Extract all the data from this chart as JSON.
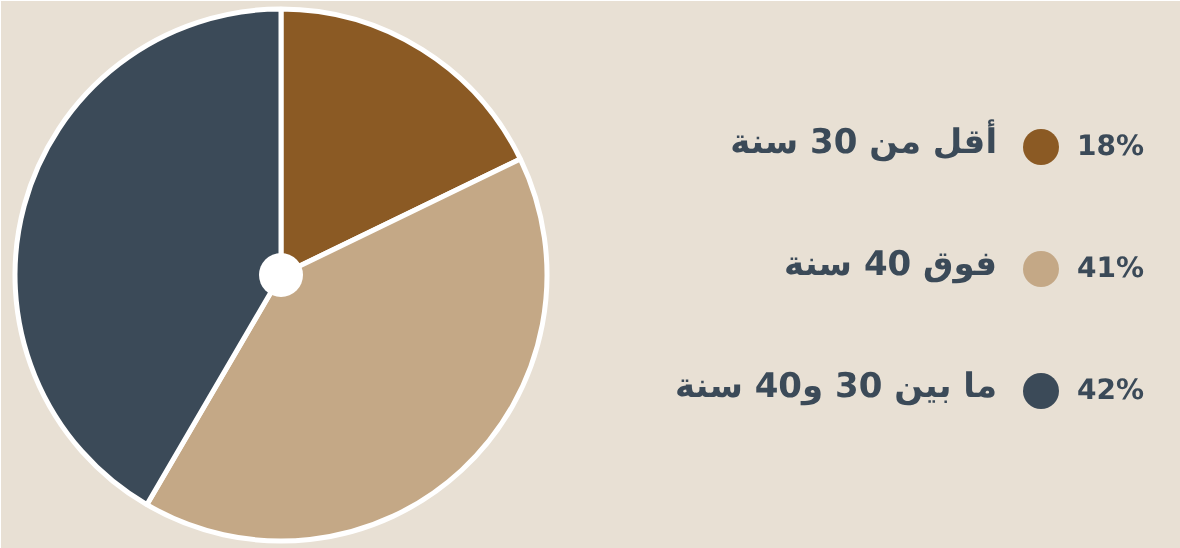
{
  "chart_data": {
    "type": "pie",
    "categories": [
      "أقل من 30 سنة",
      "فوق 40 سنة",
      "ما بين 30 و40 سنة"
    ],
    "values": [
      18,
      41,
      42
    ],
    "colors": [
      "#8b5a24",
      "#c4a886",
      "#3b4a58"
    ],
    "value_labels": [
      "18%",
      "41%",
      "42%"
    ],
    "legend": "right"
  }
}
